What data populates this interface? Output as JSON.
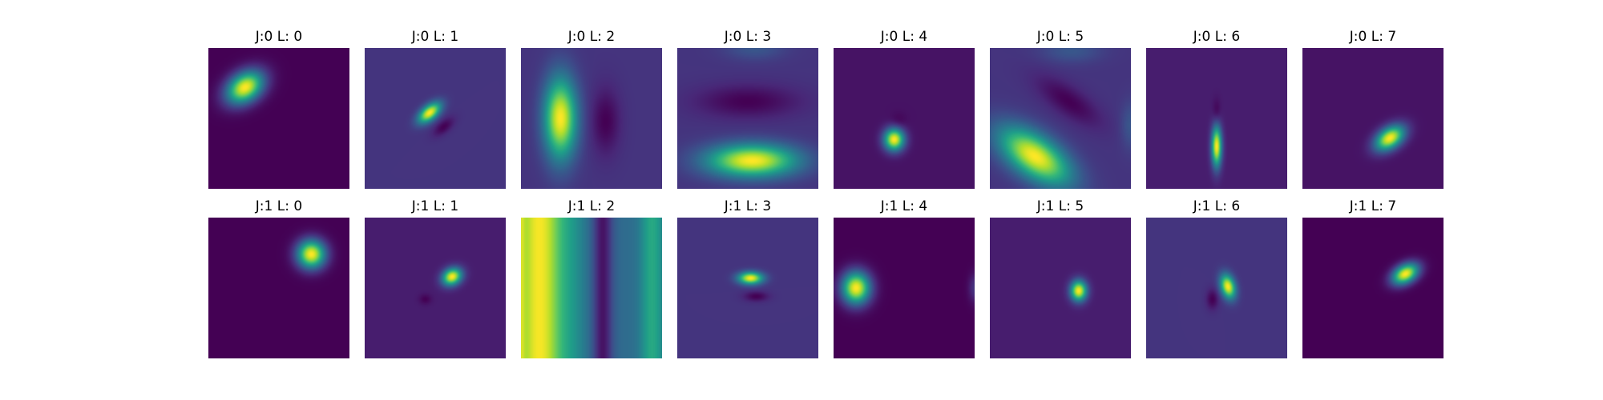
{
  "chart_data": {
    "type": "heatmap",
    "colormap": "viridis",
    "grid": false,
    "axes_visible": false,
    "rows": 2,
    "cols": 8,
    "panels": [
      {
        "title": "J:0 L: 0",
        "background": 0.0,
        "blobs": [
          {
            "x": 0.26,
            "y": 0.28,
            "sx": 0.1,
            "sy": 0.07,
            "angle": -35,
            "amp": 1.0
          }
        ]
      },
      {
        "title": "J:0 L: 1",
        "background": 0.15,
        "blobs": [
          {
            "x": 0.46,
            "y": 0.46,
            "sx": 0.065,
            "sy": 0.035,
            "angle": -40,
            "amp": 0.85
          },
          {
            "x": 0.56,
            "y": 0.56,
            "sx": 0.06,
            "sy": 0.03,
            "angle": -40,
            "amp": -0.15
          }
        ]
      },
      {
        "title": "J:0 L: 2",
        "background": 0.15,
        "blobs": [
          {
            "x": 0.28,
            "y": 0.5,
            "sx": 0.08,
            "sy": 0.2,
            "angle": 0,
            "amp": 0.85
          },
          {
            "x": 0.6,
            "y": 0.52,
            "sx": 0.07,
            "sy": 0.16,
            "angle": 0,
            "amp": -0.15
          }
        ]
      },
      {
        "title": "J:0 L: 3",
        "background": 0.15,
        "blobs": [
          {
            "x": 0.53,
            "y": 0.8,
            "sx": 0.22,
            "sy": 0.08,
            "angle": 0,
            "amp": 0.85
          },
          {
            "x": 0.5,
            "y": 0.38,
            "sx": 0.25,
            "sy": 0.08,
            "angle": 0,
            "amp": -0.15
          },
          {
            "x": 0.55,
            "y": 0.0,
            "sx": 0.15,
            "sy": 0.06,
            "angle": 0,
            "amp": 0.12
          }
        ]
      },
      {
        "title": "J:0 L: 4",
        "background": 0.05,
        "blobs": [
          {
            "x": 0.43,
            "y": 0.65,
            "sx": 0.05,
            "sy": 0.055,
            "angle": 0,
            "amp": 0.95
          },
          {
            "x": 0.46,
            "y": 0.52,
            "sx": 0.04,
            "sy": 0.04,
            "angle": 0,
            "amp": -0.05
          }
        ]
      },
      {
        "title": "J:0 L: 5",
        "background": 0.15,
        "blobs": [
          {
            "x": 0.32,
            "y": 0.77,
            "sx": 0.2,
            "sy": 0.1,
            "angle": 35,
            "amp": 0.85
          },
          {
            "x": 0.56,
            "y": 0.38,
            "sx": 0.18,
            "sy": 0.07,
            "angle": 35,
            "amp": -0.15
          },
          {
            "x": 0.58,
            "y": 0.02,
            "sx": 0.15,
            "sy": 0.06,
            "angle": 0,
            "amp": 0.12
          },
          {
            "x": 1.0,
            "y": 0.55,
            "sx": 0.05,
            "sy": 0.12,
            "angle": 0,
            "amp": 0.12
          }
        ]
      },
      {
        "title": "J:0 L: 6",
        "background": 0.08,
        "blobs": [
          {
            "x": 0.5,
            "y": 0.7,
            "sx": 0.025,
            "sy": 0.1,
            "angle": 0,
            "amp": 0.92
          },
          {
            "x": 0.5,
            "y": 0.45,
            "sx": 0.02,
            "sy": 0.06,
            "angle": 0,
            "amp": -0.08
          }
        ]
      },
      {
        "title": "J:0 L: 7",
        "background": 0.05,
        "blobs": [
          {
            "x": 0.62,
            "y": 0.64,
            "sx": 0.08,
            "sy": 0.05,
            "angle": -35,
            "amp": 0.95
          }
        ]
      },
      {
        "title": "J:1 L: 0",
        "background": 0.0,
        "blobs": [
          {
            "x": 0.73,
            "y": 0.26,
            "sx": 0.07,
            "sy": 0.07,
            "angle": 0,
            "amp": 1.0
          }
        ]
      },
      {
        "title": "J:1 L: 1",
        "background": 0.08,
        "blobs": [
          {
            "x": 0.62,
            "y": 0.42,
            "sx": 0.05,
            "sy": 0.04,
            "angle": -30,
            "amp": 0.92
          },
          {
            "x": 0.43,
            "y": 0.58,
            "sx": 0.03,
            "sy": 0.025,
            "angle": 0,
            "amp": -0.08
          }
        ]
      },
      {
        "title": "J:1 L: 2",
        "background": 0.35,
        "bands": [
          {
            "x": 0.0,
            "width": 0.02,
            "value": 0.55
          },
          {
            "x": 0.13,
            "width": 0.13,
            "value": 0.99
          },
          {
            "x": 0.38,
            "width": 0.06,
            "value": 0.42
          },
          {
            "x": 0.58,
            "width": 0.05,
            "value": 0.05
          },
          {
            "x": 0.93,
            "width": 0.06,
            "value": 0.6
          }
        ],
        "blobs": []
      },
      {
        "title": "J:1 L: 3",
        "background": 0.15,
        "blobs": [
          {
            "x": 0.52,
            "y": 0.43,
            "sx": 0.06,
            "sy": 0.03,
            "angle": 0,
            "amp": 0.85
          },
          {
            "x": 0.56,
            "y": 0.56,
            "sx": 0.06,
            "sy": 0.025,
            "angle": 0,
            "amp": -0.15
          }
        ]
      },
      {
        "title": "J:1 L: 4",
        "background": 0.0,
        "blobs": [
          {
            "x": 0.16,
            "y": 0.5,
            "sx": 0.07,
            "sy": 0.08,
            "angle": 0,
            "amp": 1.0
          },
          {
            "x": 1.0,
            "y": 0.5,
            "sx": 0.03,
            "sy": 0.07,
            "angle": 0,
            "amp": 0.15
          }
        ]
      },
      {
        "title": "J:1 L: 5",
        "background": 0.08,
        "blobs": [
          {
            "x": 0.63,
            "y": 0.52,
            "sx": 0.04,
            "sy": 0.05,
            "angle": 0,
            "amp": 0.92
          }
        ]
      },
      {
        "title": "J:1 L: 6",
        "background": 0.15,
        "blobs": [
          {
            "x": 0.58,
            "y": 0.49,
            "sx": 0.035,
            "sy": 0.06,
            "angle": -15,
            "amp": 0.85
          },
          {
            "x": 0.47,
            "y": 0.58,
            "sx": 0.03,
            "sy": 0.05,
            "angle": 0,
            "amp": -0.15
          }
        ]
      },
      {
        "title": "J:1 L: 7",
        "background": 0.0,
        "blobs": [
          {
            "x": 0.73,
            "y": 0.4,
            "sx": 0.07,
            "sy": 0.045,
            "angle": -30,
            "amp": 1.0
          }
        ]
      }
    ]
  }
}
